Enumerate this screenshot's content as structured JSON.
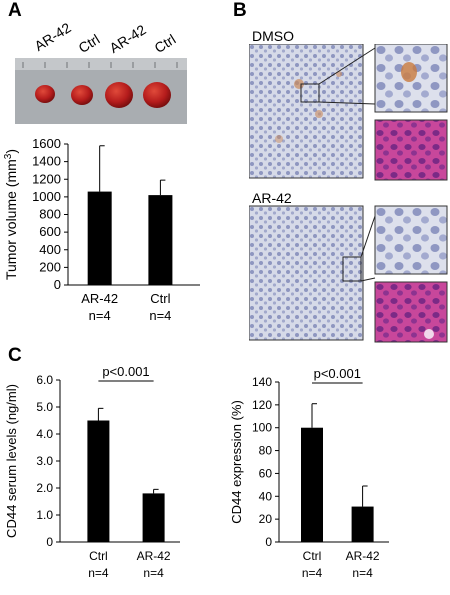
{
  "panels": {
    "a": {
      "letter": "A",
      "photo_labels": [
        "AR-42",
        "Ctrl",
        "AR-42",
        "Ctrl"
      ]
    },
    "b": {
      "letter": "B",
      "labels": [
        "DMSO",
        "AR-42"
      ]
    },
    "c": {
      "letter": "C"
    }
  },
  "colors": {
    "bar": "#000000",
    "ihc_bg": "#cfd4e4",
    "he_bg": "#c03f92",
    "tumor": "#b51c1c"
  },
  "chart_data": [
    {
      "id": "tumor-volume",
      "type": "bar",
      "categories": [
        "AR-42\nn=4",
        "Ctrl\nn=4"
      ],
      "category_lines": [
        [
          "AR-42",
          "n=4"
        ],
        [
          "Ctrl",
          "n=4"
        ]
      ],
      "values": [
        1060,
        1020
      ],
      "errors": [
        520,
        170
      ],
      "ylabel": "Tumor volume (mm³)",
      "ylabel_main": "Tumor volume (mm",
      "ylabel_sup": "3",
      "ylabel_end": ")",
      "ylim": [
        0,
        1600
      ],
      "yticks": [
        0,
        200,
        400,
        600,
        800,
        1000,
        1200,
        1400,
        1600
      ]
    },
    {
      "id": "cd44-serum",
      "type": "bar",
      "categories": [
        "Ctrl\nn=4",
        "AR-42\nn=4"
      ],
      "category_lines": [
        [
          "Ctrl",
          "n=4"
        ],
        [
          "AR-42",
          "n=4"
        ]
      ],
      "values": [
        4.5,
        1.8
      ],
      "errors": [
        0.45,
        0.15
      ],
      "ylabel": "CD44 serum levels (ng/ml)",
      "ylim": [
        0,
        6
      ],
      "yticks": [
        0,
        1.0,
        2.0,
        3.0,
        4.0,
        5.0,
        6.0
      ],
      "ytick_labels": [
        "0",
        "1.0",
        "2.0",
        "3.0",
        "4.0",
        "5.0",
        "6.0"
      ],
      "annotation": "p<0.001"
    },
    {
      "id": "cd44-expression",
      "type": "bar",
      "categories": [
        "Ctrl\nn=4",
        "AR-42\nn=4"
      ],
      "category_lines": [
        [
          "Ctrl",
          "n=4"
        ],
        [
          "AR-42",
          "n=4"
        ]
      ],
      "values": [
        100,
        31
      ],
      "errors": [
        21,
        18
      ],
      "ylabel": "CD44 expression (%)",
      "ylim": [
        0,
        140
      ],
      "yticks": [
        0,
        20,
        40,
        60,
        80,
        100,
        120,
        140
      ],
      "annotation": "p<0.001"
    }
  ]
}
